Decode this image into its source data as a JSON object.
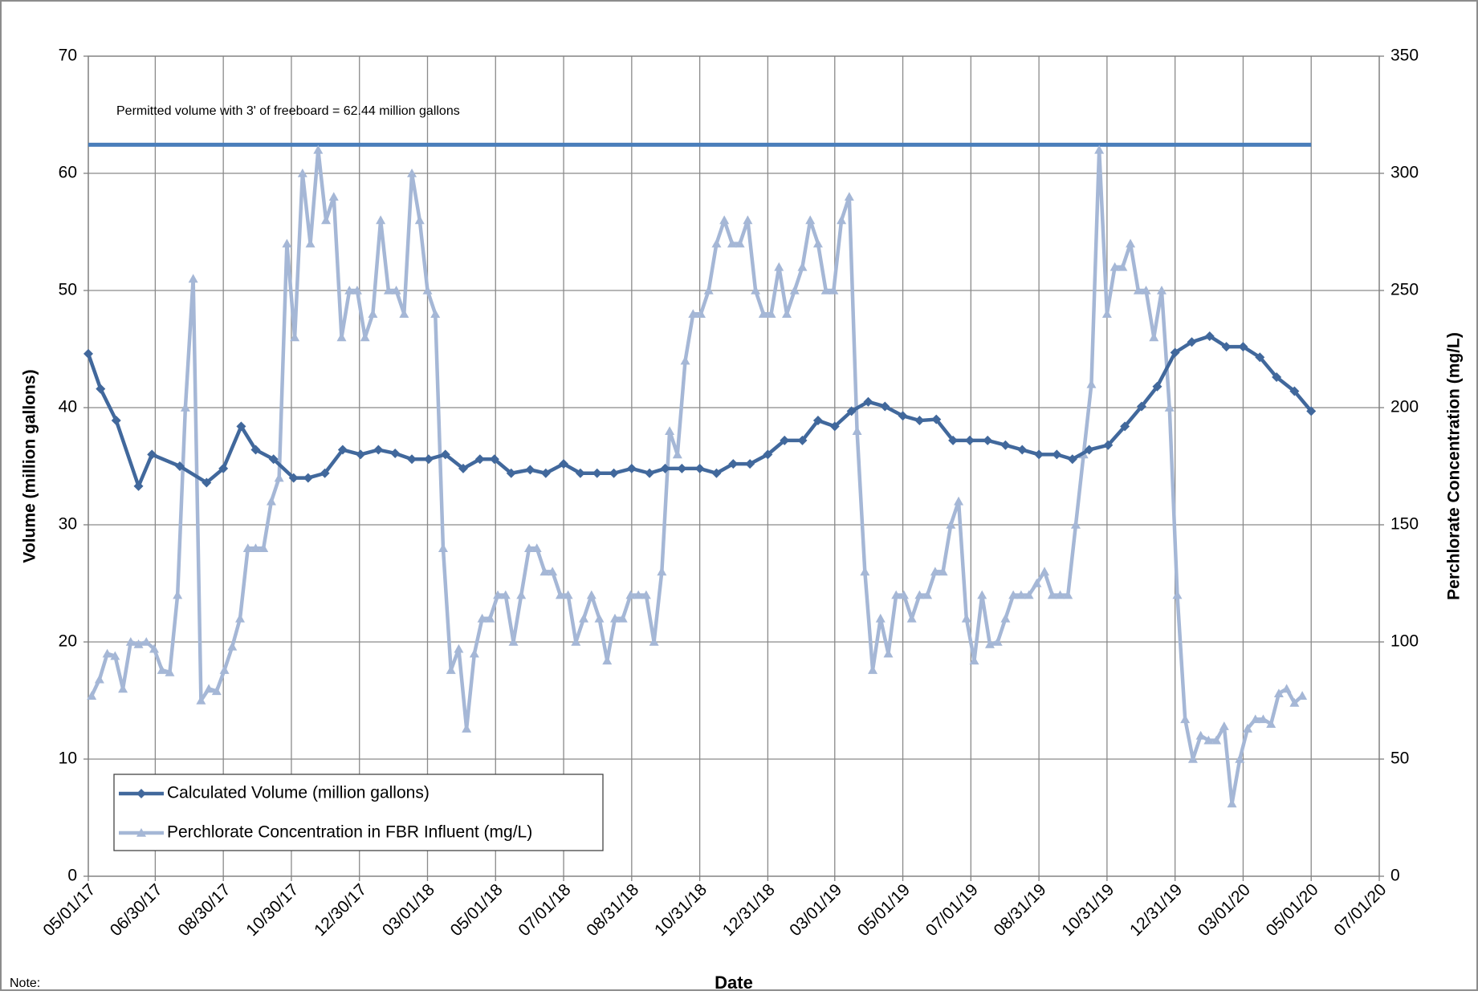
{
  "chart_data": {
    "type": "line",
    "xlabel": "Date",
    "ylabel": "Volume (million gallons)",
    "y2label": "Perchlorate Concentration (mg/L)",
    "note": "Note:",
    "xlim": [
      "2017-05-01",
      "2020-07-01"
    ],
    "xticks": [
      {
        "value": "2017-05-01",
        "label": "05/01/17"
      },
      {
        "value": "2017-06-30",
        "label": "06/30/17"
      },
      {
        "value": "2017-08-30",
        "label": "08/30/17"
      },
      {
        "value": "2017-10-30",
        "label": "10/30/17"
      },
      {
        "value": "2017-12-30",
        "label": "12/30/17"
      },
      {
        "value": "2018-03-01",
        "label": "03/01/18"
      },
      {
        "value": "2018-05-01",
        "label": "05/01/18"
      },
      {
        "value": "2018-07-01",
        "label": "07/01/18"
      },
      {
        "value": "2018-08-31",
        "label": "08/31/18"
      },
      {
        "value": "2018-10-31",
        "label": "10/31/18"
      },
      {
        "value": "2018-12-31",
        "label": "12/31/18"
      },
      {
        "value": "2019-03-01",
        "label": "03/01/19"
      },
      {
        "value": "2019-05-01",
        "label": "05/01/19"
      },
      {
        "value": "2019-07-01",
        "label": "07/01/19"
      },
      {
        "value": "2019-08-31",
        "label": "08/31/19"
      },
      {
        "value": "2019-10-31",
        "label": "10/31/19"
      },
      {
        "value": "2019-12-31",
        "label": "12/31/19"
      },
      {
        "value": "2020-03-01",
        "label": "03/01/20"
      },
      {
        "value": "2020-05-01",
        "label": "05/01/20"
      },
      {
        "value": "2020-07-01",
        "label": "07/01/20"
      }
    ],
    "ylim": [
      0,
      70
    ],
    "yticks": [
      0,
      10,
      20,
      30,
      40,
      50,
      60,
      70
    ],
    "y2lim": [
      0,
      350
    ],
    "y2ticks": [
      0,
      50,
      100,
      150,
      200,
      250,
      300,
      350
    ],
    "grid": true,
    "legend": "lower left",
    "reference_line": {
      "value": 62.44,
      "color": "#4a7ebb",
      "label": "Permitted volume with 3' of freeboard = 62.44 million gallons"
    },
    "series": [
      {
        "name": "Calculated Volume (million gallons)",
        "color": "#41689c",
        "marker": "diamond",
        "axis": "y",
        "x": [
          "2017-05-01",
          "2017-05-12",
          "2017-05-26",
          "2017-06-15",
          "2017-06-27",
          "2017-07-22",
          "2017-08-15",
          "2017-08-30",
          "2017-09-15",
          "2017-09-28",
          "2017-10-14",
          "2017-11-01",
          "2017-11-14",
          "2017-11-29",
          "2017-12-15",
          "2017-12-31",
          "2018-01-16",
          "2018-01-31",
          "2018-02-15",
          "2018-03-02",
          "2018-03-17",
          "2018-04-02",
          "2018-04-17",
          "2018-04-30",
          "2018-05-15",
          "2018-06-01",
          "2018-06-15",
          "2018-07-01",
          "2018-07-16",
          "2018-07-31",
          "2018-08-15",
          "2018-08-31",
          "2018-09-16",
          "2018-09-30",
          "2018-10-15",
          "2018-10-31",
          "2018-11-15",
          "2018-11-30",
          "2018-12-15",
          "2018-12-31",
          "2019-01-15",
          "2019-01-31",
          "2019-02-14",
          "2019-03-01",
          "2019-03-16",
          "2019-03-31",
          "2019-04-15",
          "2019-05-01",
          "2019-05-16",
          "2019-05-31",
          "2019-06-15",
          "2019-06-30",
          "2019-07-16",
          "2019-08-01",
          "2019-08-16",
          "2019-08-31",
          "2019-09-16",
          "2019-09-30",
          "2019-10-15",
          "2019-11-01",
          "2019-11-16",
          "2019-12-01",
          "2019-12-15",
          "2019-12-31",
          "2020-01-15",
          "2020-01-31",
          "2020-02-15",
          "2020-03-01",
          "2020-03-16",
          "2020-03-31",
          "2020-04-16",
          "2020-05-01"
        ],
        "values": [
          44.6,
          41.6,
          38.9,
          33.3,
          36.0,
          35.0,
          33.6,
          34.8,
          38.4,
          36.4,
          35.6,
          34.0,
          34.0,
          34.4,
          36.4,
          36.0,
          36.4,
          36.1,
          35.6,
          35.6,
          36.0,
          34.8,
          35.6,
          35.6,
          34.4,
          34.7,
          34.4,
          35.2,
          34.4,
          34.4,
          34.4,
          34.8,
          34.4,
          34.8,
          34.8,
          34.8,
          34.4,
          35.2,
          35.2,
          36.0,
          37.2,
          37.2,
          38.9,
          38.4,
          39.7,
          40.5,
          40.1,
          39.3,
          38.9,
          39.0,
          37.2,
          37.2,
          37.2,
          36.8,
          36.4,
          36.0,
          36.0,
          35.6,
          36.4,
          36.8,
          38.4,
          40.1,
          41.8,
          44.7,
          45.6,
          46.1,
          45.2,
          45.2,
          44.3,
          42.6,
          41.4,
          39.7
        ]
      },
      {
        "name": "Perchlorate Concentration in FBR Influent (mg/L)",
        "color": "#a5b7d6",
        "marker": "triangle",
        "axis": "y2",
        "x": [
          "2017-05-04",
          "2017-05-11",
          "2017-05-18",
          "2017-05-25",
          "2017-06-01",
          "2017-06-08",
          "2017-06-15",
          "2017-06-22",
          "2017-06-29",
          "2017-07-06",
          "2017-07-13",
          "2017-07-20",
          "2017-07-27",
          "2017-08-03",
          "2017-08-10",
          "2017-08-17",
          "2017-08-24",
          "2017-08-31",
          "2017-09-07",
          "2017-09-14",
          "2017-09-21",
          "2017-09-28",
          "2017-10-05",
          "2017-10-12",
          "2017-10-19",
          "2017-10-26",
          "2017-11-02",
          "2017-11-09",
          "2017-11-16",
          "2017-11-23",
          "2017-11-30",
          "2017-12-07",
          "2017-12-14",
          "2017-12-21",
          "2017-12-28",
          "2018-01-04",
          "2018-01-11",
          "2018-01-18",
          "2018-01-25",
          "2018-02-01",
          "2018-02-08",
          "2018-02-15",
          "2018-02-22",
          "2018-03-01",
          "2018-03-08",
          "2018-03-15",
          "2018-03-22",
          "2018-03-29",
          "2018-04-05",
          "2018-04-12",
          "2018-04-19",
          "2018-04-26",
          "2018-05-03",
          "2018-05-10",
          "2018-05-17",
          "2018-05-24",
          "2018-05-31",
          "2018-06-07",
          "2018-06-14",
          "2018-06-21",
          "2018-06-28",
          "2018-07-05",
          "2018-07-12",
          "2018-07-19",
          "2018-07-26",
          "2018-08-02",
          "2018-08-09",
          "2018-08-16",
          "2018-08-23",
          "2018-08-30",
          "2018-09-06",
          "2018-09-13",
          "2018-09-20",
          "2018-09-27",
          "2018-10-04",
          "2018-10-11",
          "2018-10-18",
          "2018-10-25",
          "2018-11-01",
          "2018-11-08",
          "2018-11-15",
          "2018-11-22",
          "2018-11-29",
          "2018-12-06",
          "2018-12-13",
          "2018-12-20",
          "2018-12-27",
          "2019-01-03",
          "2019-01-10",
          "2019-01-17",
          "2019-01-24",
          "2019-01-31",
          "2019-02-07",
          "2019-02-14",
          "2019-02-21",
          "2019-02-28",
          "2019-03-07",
          "2019-03-14",
          "2019-03-21",
          "2019-03-28",
          "2019-04-04",
          "2019-04-11",
          "2019-04-18",
          "2019-04-25",
          "2019-05-02",
          "2019-05-09",
          "2019-05-16",
          "2019-05-23",
          "2019-05-30",
          "2019-06-06",
          "2019-06-13",
          "2019-06-20",
          "2019-06-27",
          "2019-07-04",
          "2019-07-11",
          "2019-07-18",
          "2019-07-25",
          "2019-08-01",
          "2019-08-08",
          "2019-08-15",
          "2019-08-22",
          "2019-08-29",
          "2019-09-05",
          "2019-09-12",
          "2019-09-19",
          "2019-09-26",
          "2019-10-03",
          "2019-10-10",
          "2019-10-17",
          "2019-10-24",
          "2019-10-31",
          "2019-11-07",
          "2019-11-14",
          "2019-11-21",
          "2019-11-28",
          "2019-12-05",
          "2019-12-12",
          "2019-12-19",
          "2019-12-26",
          "2020-01-02",
          "2020-01-09",
          "2020-01-16",
          "2020-01-23",
          "2020-01-30",
          "2020-02-06",
          "2020-02-13",
          "2020-02-20",
          "2020-02-27",
          "2020-03-05",
          "2020-03-12",
          "2020-03-19",
          "2020-03-26",
          "2020-04-02",
          "2020-04-09",
          "2020-04-16",
          "2020-04-23"
        ],
        "values": [
          77,
          84,
          95,
          94,
          80,
          100,
          99,
          100,
          97,
          88,
          87,
          120,
          200,
          255,
          75,
          80,
          79,
          88,
          98,
          110,
          140,
          140,
          140,
          160,
          170,
          270,
          230,
          300,
          270,
          310,
          280,
          290,
          230,
          250,
          250,
          230,
          240,
          280,
          250,
          250,
          240,
          300,
          280,
          250,
          240,
          140,
          88,
          97,
          63,
          95,
          110,
          110,
          120,
          120,
          100,
          120,
          140,
          140,
          130,
          130,
          120,
          120,
          100,
          110,
          120,
          110,
          92,
          110,
          110,
          120,
          120,
          120,
          100,
          130,
          190,
          180,
          220,
          240,
          240,
          250,
          270,
          280,
          270,
          270,
          280,
          250,
          240,
          240,
          260,
          240,
          250,
          260,
          280,
          270,
          250,
          250,
          280,
          290,
          190,
          130,
          88,
          110,
          95,
          120,
          120,
          110,
          120,
          120,
          130,
          130,
          150,
          160,
          110,
          92,
          120,
          99,
          100,
          110,
          120,
          120,
          120,
          125,
          130,
          120,
          120,
          120,
          150,
          180,
          210,
          310,
          240,
          260,
          260,
          270,
          250,
          250,
          230,
          250,
          200,
          120,
          67,
          50,
          60,
          58,
          58,
          64,
          31,
          50,
          63,
          67,
          67,
          65,
          78,
          80,
          74,
          77
        ]
      }
    ]
  }
}
